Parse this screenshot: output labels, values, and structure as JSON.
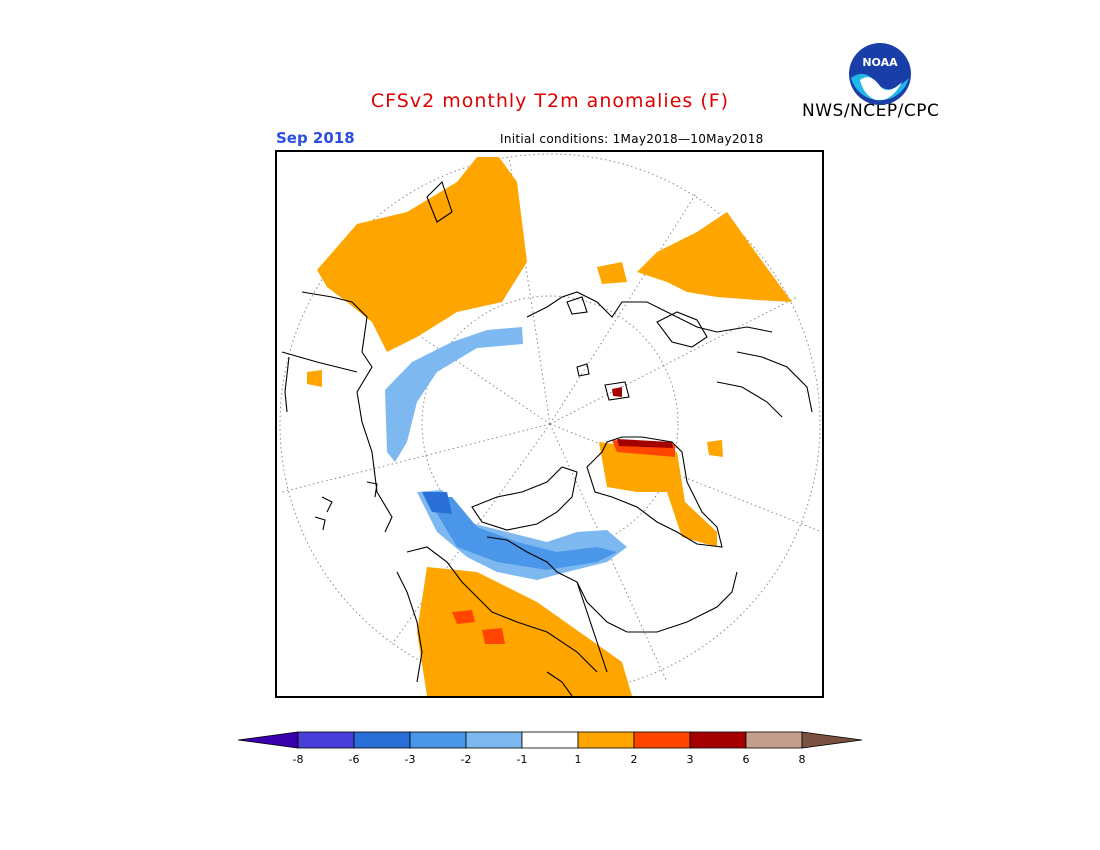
{
  "header": {
    "title": "CFSv2 monthly T2m anomalies (F)",
    "agency": "NWS/NCEP/CPC",
    "logo_text": "NOAA"
  },
  "map": {
    "month_label": "Sep 2018",
    "initial_conditions": "Initial conditions: 1May2018—10May2018",
    "projection": "north polar stereographic",
    "colors": {
      "land_outline": "#000000",
      "grid": "#888888",
      "warm1": "#ffa500",
      "warm2": "#ff4500",
      "warm3": "#a50000",
      "cool1": "#7db9f0",
      "cool2": "#4a97ea",
      "cool3": "#2a6fd8"
    }
  },
  "legend": {
    "bins": [
      {
        "color": "#3a00b0"
      },
      {
        "color": "#4a3ed8"
      },
      {
        "color": "#2a6fd8"
      },
      {
        "color": "#4a97ea"
      },
      {
        "color": "#7db9f0"
      },
      {
        "color": "#ffffff"
      },
      {
        "color": "#ffa500"
      },
      {
        "color": "#ff4500"
      },
      {
        "color": "#a50000"
      },
      {
        "color": "#c4a08c"
      },
      {
        "color": "#7a5040"
      }
    ],
    "labels": [
      "-8",
      "-6",
      "-3",
      "-2",
      "-1",
      "1",
      "2",
      "3",
      "6",
      "8"
    ]
  }
}
